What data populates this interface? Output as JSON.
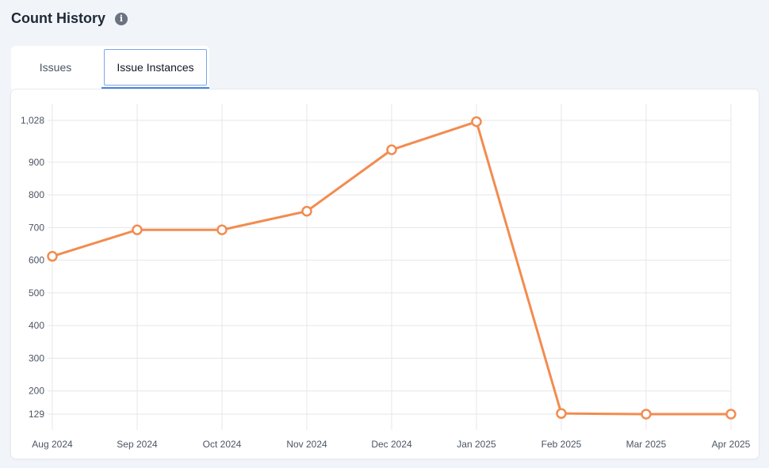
{
  "header": {
    "title": "Count History"
  },
  "icons": {
    "info": "info-icon"
  },
  "tabs": [
    {
      "label": "Issues",
      "active": false
    },
    {
      "label": "Issue Instances",
      "active": true
    }
  ],
  "colors": {
    "line": "#f28c50",
    "grid": "#e5e7eb",
    "active_tab_border": "#7aa7e9",
    "active_tab_underline": "#4a83d9"
  },
  "chart_data": {
    "type": "line",
    "categories": [
      "Aug 2024",
      "Sep 2024",
      "Oct 2024",
      "Nov 2024",
      "Dec 2024",
      "Jan 2025",
      "Feb 2025",
      "Mar 2025",
      "Apr 2025"
    ],
    "values": [
      612,
      693,
      693,
      750,
      938,
      1024,
      131,
      129,
      129
    ],
    "yticks": [
      129,
      200,
      300,
      400,
      500,
      600,
      700,
      800,
      900,
      1028
    ],
    "ytick_labels": [
      "129",
      "200",
      "300",
      "400",
      "500",
      "600",
      "700",
      "800",
      "900",
      "1,028"
    ],
    "ylim": [
      129,
      1028
    ],
    "grid": true,
    "legend": "none"
  }
}
